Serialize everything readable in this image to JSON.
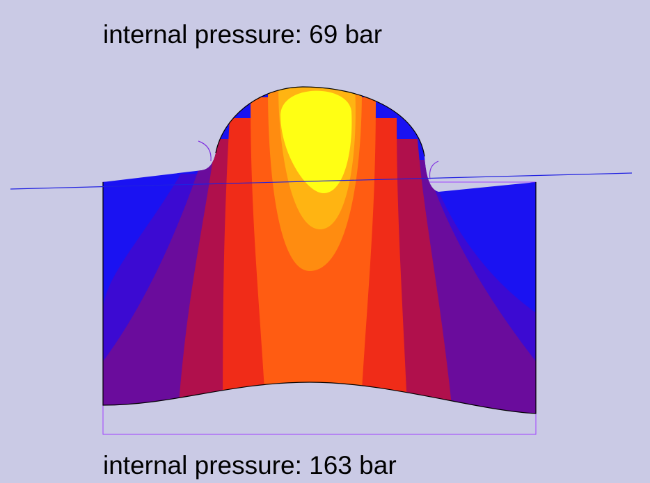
{
  "top_label": "internal pressure: 69 bar",
  "bottom_label": "internal pressure: 163 bar"
}
